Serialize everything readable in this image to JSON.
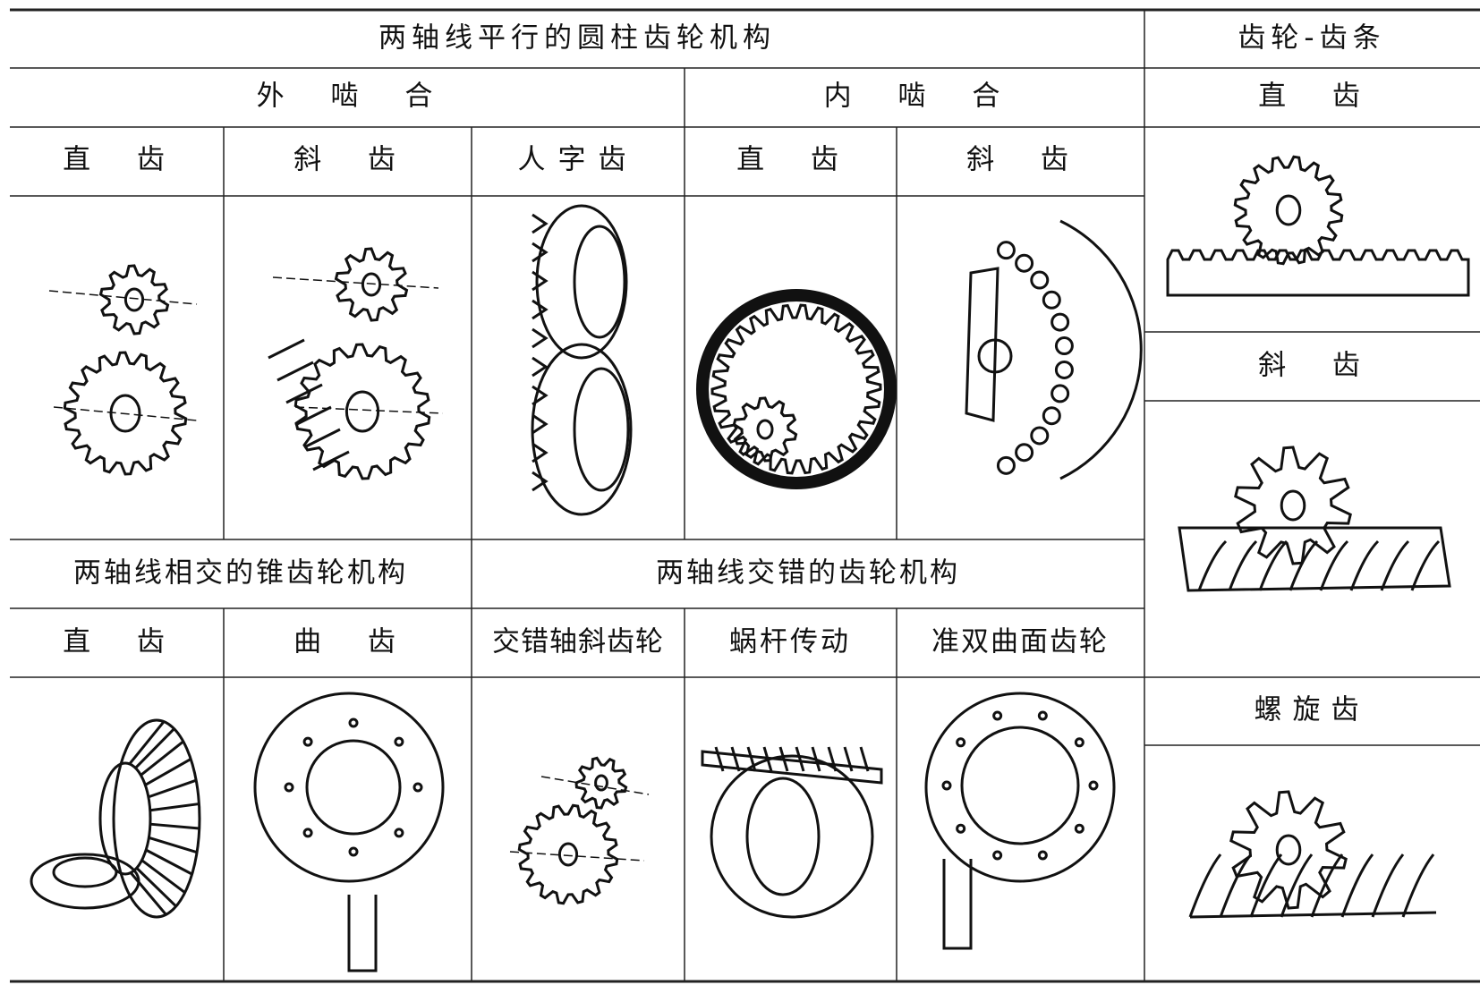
{
  "parallel": {
    "title": "两轴线平行的圆柱齿轮机构",
    "external": {
      "label": "外 啮 合",
      "columns": [
        "直 齿",
        "斜 齿",
        "人字齿"
      ]
    },
    "internal": {
      "label": "内 啮 合",
      "columns": [
        "直 齿",
        "斜 齿"
      ]
    }
  },
  "rack": {
    "title": "齿轮-齿条",
    "types": [
      "直 齿",
      "斜 齿",
      "螺旋齿"
    ]
  },
  "intersecting": {
    "title": "两轴线相交的锥齿轮机构",
    "columns": [
      "直 齿",
      "曲 齿"
    ]
  },
  "crossed": {
    "title": "两轴线交错的齿轮机构",
    "columns": [
      "交错轴斜齿轮",
      "蜗杆传动",
      "准双曲面齿轮"
    ]
  }
}
